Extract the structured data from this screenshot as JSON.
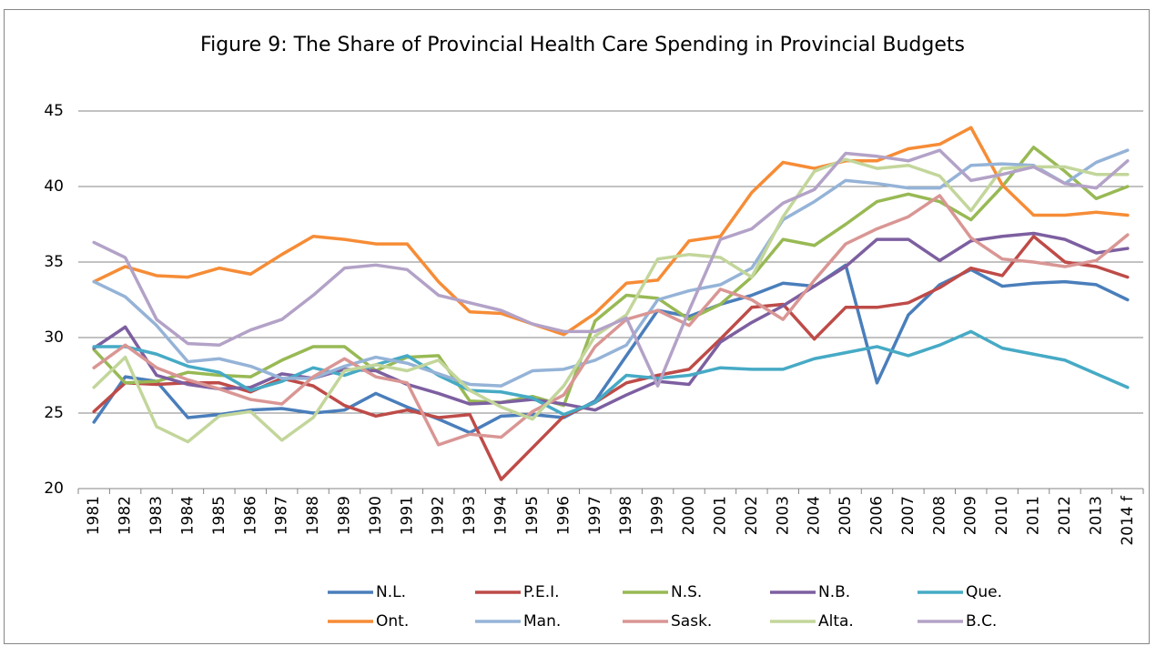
{
  "chart_data": {
    "type": "line",
    "title": "Figure 9: The Share of Provincial Health Care Spending in Provincial Budgets",
    "categories": [
      "1981",
      "1982",
      "1983",
      "1984",
      "1985",
      "1986",
      "1987",
      "1988",
      "1989",
      "1990",
      "1991",
      "1992",
      "1993",
      "1994",
      "1995",
      "1996",
      "1997",
      "1998",
      "1999",
      "2000",
      "2001",
      "2002",
      "2003",
      "2004",
      "2005",
      "2006",
      "2007",
      "2008",
      "2009",
      "2010",
      "2011",
      "2012",
      "2013",
      "2014 f"
    ],
    "ylim": [
      20,
      45
    ],
    "yticks": [
      20,
      25,
      30,
      35,
      40,
      45
    ],
    "grid": true,
    "legend": "bottom",
    "series": [
      {
        "name": "N.L.",
        "color": "#4a7ebb",
        "values": [
          24.4,
          27.4,
          27.1,
          24.7,
          24.9,
          25.2,
          25.3,
          25.0,
          25.2,
          26.3,
          25.4,
          24.6,
          23.7,
          24.8,
          24.9,
          24.7,
          25.8,
          28.8,
          31.8,
          31.4,
          32.2,
          32.8,
          33.6,
          33.4,
          34.8,
          27.0,
          31.5,
          33.5,
          34.5,
          33.4,
          33.6,
          33.7,
          33.5,
          32.5
        ]
      },
      {
        "name": "P.E.I.",
        "color": "#be4b48",
        "values": [
          25.1,
          27.0,
          26.9,
          27.0,
          27.0,
          26.4,
          27.3,
          26.8,
          25.5,
          24.8,
          25.2,
          24.7,
          24.9,
          20.6,
          22.7,
          24.8,
          25.7,
          27.0,
          27.5,
          27.9,
          29.9,
          32.0,
          32.2,
          29.9,
          32.0,
          32.0,
          32.3,
          33.3,
          34.6,
          34.1,
          36.7,
          35.0,
          34.7,
          34.0
        ]
      },
      {
        "name": "N.S.",
        "color": "#98b954",
        "values": [
          29.2,
          27.0,
          27.1,
          27.7,
          27.5,
          27.4,
          28.5,
          29.4,
          29.4,
          27.8,
          28.7,
          28.8,
          25.8,
          25.7,
          26.1,
          25.5,
          31.1,
          32.8,
          32.6,
          31.2,
          32.2,
          34.0,
          36.5,
          36.1,
          37.5,
          39.0,
          39.5,
          39.0,
          37.8,
          40.0,
          42.6,
          41.0,
          39.2,
          40.0
        ]
      },
      {
        "name": "N.B.",
        "color": "#7d5fa0",
        "values": [
          29.3,
          30.7,
          27.5,
          26.9,
          26.6,
          26.7,
          27.6,
          27.3,
          27.9,
          27.8,
          26.9,
          26.3,
          25.6,
          25.7,
          25.9,
          25.6,
          25.2,
          26.2,
          27.1,
          26.9,
          29.7,
          31.0,
          32.1,
          33.4,
          34.7,
          36.5,
          36.5,
          35.1,
          36.4,
          36.7,
          36.9,
          36.5,
          35.6,
          35.9
        ]
      },
      {
        "name": "Que.",
        "color": "#46aac5",
        "values": [
          29.4,
          29.4,
          28.9,
          28.1,
          27.7,
          26.5,
          27.1,
          28.0,
          27.5,
          28.2,
          28.8,
          27.5,
          26.5,
          26.4,
          26.0,
          24.9,
          25.7,
          27.5,
          27.3,
          27.5,
          28.0,
          27.9,
          27.9,
          28.6,
          29.0,
          29.4,
          28.8,
          29.5,
          30.4,
          29.3,
          28.9,
          28.5,
          27.6,
          26.7
        ]
      },
      {
        "name": "Ont.",
        "color": "#f68c36",
        "values": [
          33.7,
          34.7,
          34.1,
          34.0,
          34.6,
          34.2,
          35.5,
          36.7,
          36.5,
          36.2,
          36.2,
          33.7,
          31.7,
          31.6,
          30.9,
          30.2,
          31.6,
          33.6,
          33.8,
          36.4,
          36.7,
          39.6,
          41.6,
          41.2,
          41.7,
          41.7,
          42.5,
          42.8,
          43.9,
          40.1,
          38.1,
          38.1,
          38.3,
          38.1
        ]
      },
      {
        "name": "Man.",
        "color": "#95b3d7",
        "values": [
          33.7,
          32.7,
          30.8,
          28.4,
          28.6,
          28.1,
          27.3,
          27.3,
          28.1,
          28.7,
          28.3,
          27.6,
          26.9,
          26.8,
          27.8,
          27.9,
          28.5,
          29.5,
          32.5,
          33.1,
          33.5,
          34.6,
          37.8,
          39.0,
          40.4,
          40.2,
          39.9,
          39.9,
          41.4,
          41.5,
          41.4,
          40.2,
          41.6,
          42.4
        ]
      },
      {
        "name": "Sask.",
        "color": "#d99694",
        "values": [
          28.0,
          29.5,
          28.0,
          27.2,
          26.6,
          25.9,
          25.6,
          27.4,
          28.6,
          27.4,
          27.0,
          22.9,
          23.6,
          23.4,
          25.1,
          26.2,
          29.4,
          31.2,
          31.8,
          30.8,
          33.2,
          32.5,
          31.2,
          33.8,
          36.2,
          37.2,
          38.0,
          39.4,
          36.6,
          35.2,
          35.0,
          34.7,
          35.1,
          36.8
        ]
      },
      {
        "name": "Alta.",
        "color": "#c3d69b",
        "values": [
          26.7,
          28.7,
          24.1,
          23.1,
          24.8,
          25.1,
          23.2,
          24.7,
          27.8,
          28.2,
          27.8,
          28.5,
          26.5,
          25.4,
          24.6,
          26.8,
          30.1,
          31.5,
          35.2,
          35.5,
          35.3,
          34.0,
          38.0,
          41.0,
          41.8,
          41.2,
          41.4,
          40.7,
          38.4,
          41.2,
          41.3,
          41.3,
          40.8,
          40.8
        ]
      },
      {
        "name": "B.C.",
        "color": "#b3a2c7",
        "values": [
          36.3,
          35.3,
          31.2,
          29.6,
          29.5,
          30.5,
          31.2,
          32.8,
          34.6,
          34.8,
          34.5,
          32.8,
          32.3,
          31.8,
          30.9,
          30.4,
          30.4,
          31.3,
          26.8,
          31.8,
          36.5,
          37.2,
          38.9,
          39.8,
          42.2,
          42.0,
          41.7,
          42.4,
          40.4,
          40.8,
          41.3,
          40.2,
          39.9,
          41.7
        ]
      }
    ]
  }
}
